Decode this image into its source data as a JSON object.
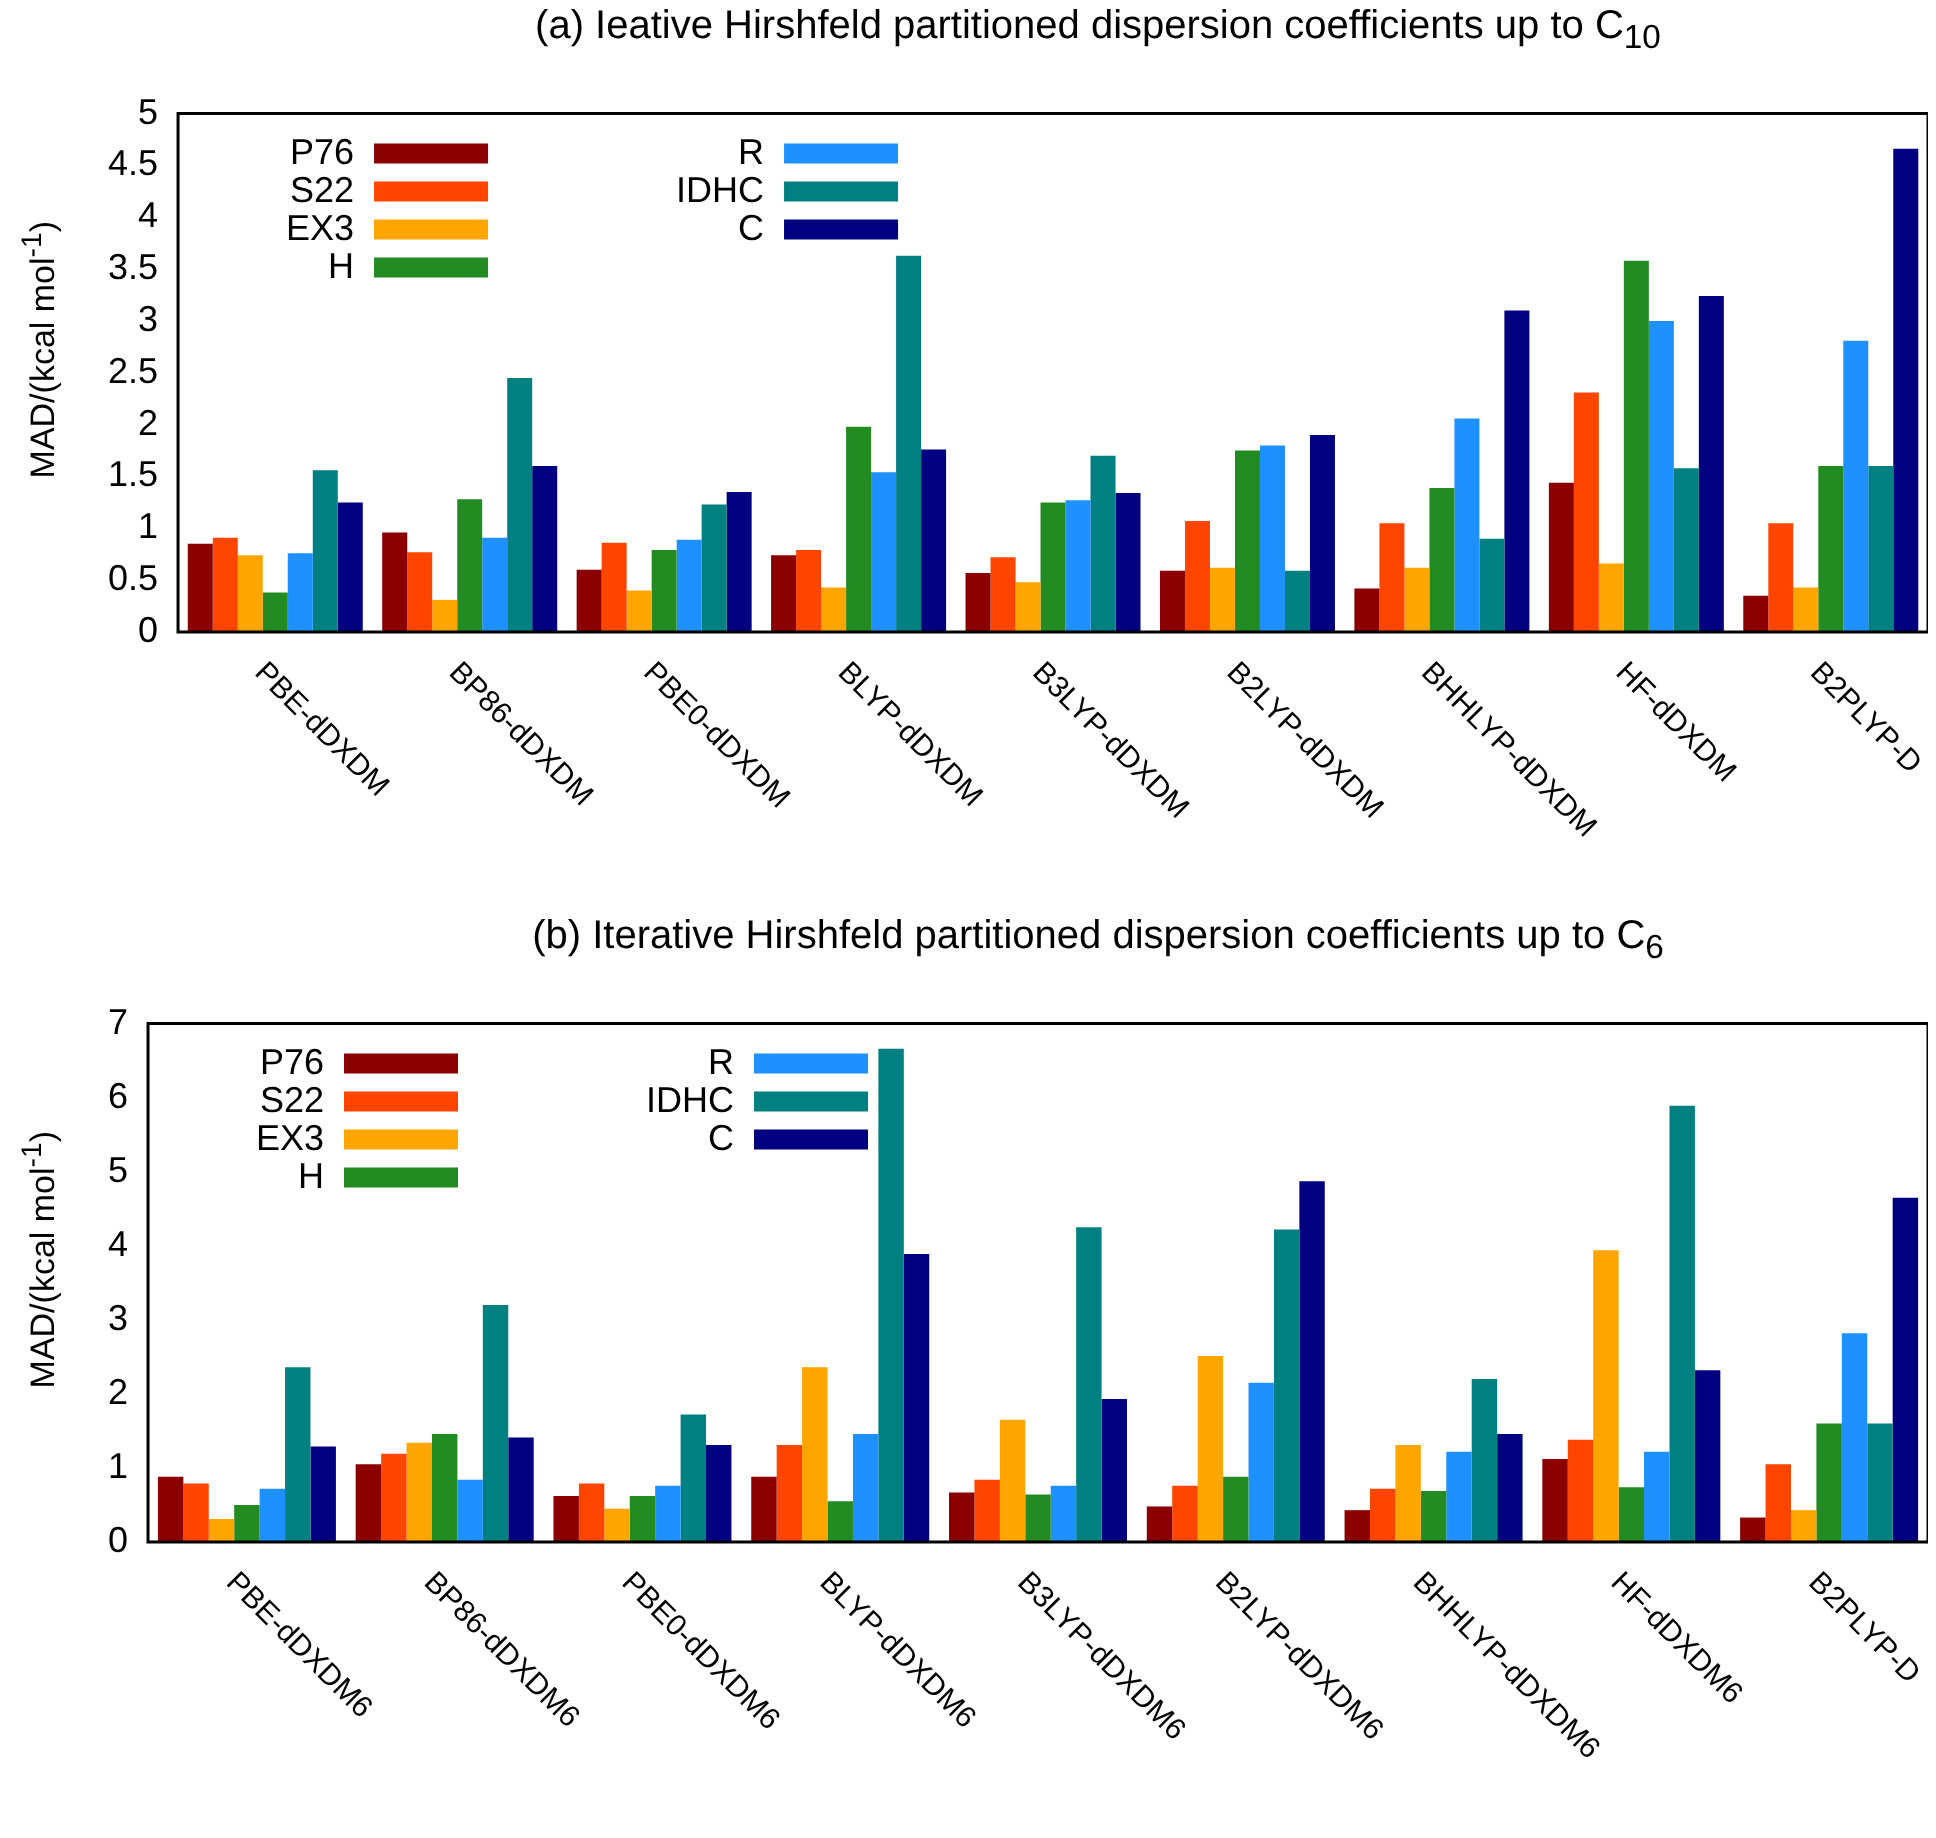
{
  "chart_data": [
    {
      "type": "bar",
      "title": "(a) Ieative Hirshfeld partitioned dispersion coefficients up to C$_{10}$",
      "ylabel": "MAD/(kcal mol$^{-1}$)",
      "categories": [
        "PBE-dDXDM",
        "BP86-dDXDM",
        "PBE0-dDXDM",
        "BLYP-dDXDM",
        "B3LYP-dDXDM",
        "B2LYP-dDXDM",
        "BHHLYP-dDXDM",
        "HF-dDXDM",
        "B2PLYP-D"
      ],
      "series": [
        {
          "name": "P76",
          "color": "#8b0000",
          "values": [
            0.85,
            0.96,
            0.6,
            0.74,
            0.57,
            0.59,
            0.42,
            1.44,
            0.35
          ]
        },
        {
          "name": "S22",
          "color": "#ff4500",
          "values": [
            0.91,
            0.77,
            0.86,
            0.79,
            0.72,
            1.07,
            1.05,
            2.31,
            1.05
          ]
        },
        {
          "name": "EX3",
          "color": "#ffa500",
          "values": [
            0.74,
            0.31,
            0.4,
            0.43,
            0.48,
            0.62,
            0.62,
            0.66,
            0.43
          ]
        },
        {
          "name": "H",
          "color": "#228b22",
          "values": [
            0.38,
            1.28,
            0.79,
            1.98,
            1.25,
            1.75,
            1.39,
            3.58,
            1.6
          ]
        },
        {
          "name": "R",
          "color": "#1e90ff",
          "values": [
            0.76,
            0.91,
            0.89,
            1.54,
            1.27,
            1.8,
            2.06,
            3.0,
            2.81
          ]
        },
        {
          "name": "IDHC",
          "color": "#008080",
          "values": [
            1.56,
            2.45,
            1.23,
            3.63,
            1.7,
            0.59,
            0.9,
            1.58,
            1.6
          ]
        },
        {
          "name": "C",
          "color": "#000080",
          "values": [
            1.25,
            1.6,
            1.35,
            1.76,
            1.34,
            1.9,
            3.1,
            3.24,
            4.66
          ]
        }
      ],
      "ylim": [
        0,
        5
      ],
      "yticks": [
        0,
        0.5,
        1,
        1.5,
        2,
        2.5,
        3,
        3.5,
        4,
        4.5,
        5
      ],
      "grid": false,
      "legend": "top left"
    },
    {
      "type": "bar",
      "title": "(b) Iterative Hirshfeld partitioned dispersion coefficients up to C$_{6}$",
      "ylabel": "MAD/(kcal mol$^{-1}$)",
      "categories": [
        "PBE-dDXDM6",
        "BP86-dDXDM6",
        "PBE0-dDXDM6",
        "BLYP-dDXDM6",
        "B3LYP-dDXDM6",
        "B2LYP-dDXDM6",
        "BHHLYP-dDXDM6",
        "HF-dDXDM6",
        "B2PLYP-D"
      ],
      "series": [
        {
          "name": "P76",
          "color": "#8b0000",
          "values": [
            0.88,
            1.05,
            0.62,
            0.88,
            0.67,
            0.48,
            0.43,
            1.12,
            0.33
          ]
        },
        {
          "name": "S22",
          "color": "#ff4500",
          "values": [
            0.79,
            1.19,
            0.79,
            1.31,
            0.84,
            0.76,
            0.72,
            1.38,
            1.05
          ]
        },
        {
          "name": "EX3",
          "color": "#ffa500",
          "values": [
            0.31,
            1.34,
            0.45,
            2.36,
            1.65,
            2.51,
            1.31,
            3.94,
            0.43
          ]
        },
        {
          "name": "H",
          "color": "#228b22",
          "values": [
            0.5,
            1.46,
            0.62,
            0.55,
            0.64,
            0.88,
            0.69,
            0.74,
            1.6
          ]
        },
        {
          "name": "R",
          "color": "#1e90ff",
          "values": [
            0.72,
            0.84,
            0.76,
            1.46,
            0.76,
            2.15,
            1.22,
            1.22,
            2.82
          ]
        },
        {
          "name": "IDHC",
          "color": "#008080",
          "values": [
            2.36,
            3.2,
            1.72,
            6.66,
            4.25,
            4.22,
            2.2,
            5.89,
            1.6
          ]
        },
        {
          "name": "C",
          "color": "#000080",
          "values": [
            1.29,
            1.41,
            1.31,
            3.89,
            1.93,
            4.87,
            1.46,
            2.32,
            4.65
          ]
        }
      ],
      "ylim": [
        0,
        7
      ],
      "yticks": [
        0,
        1,
        2,
        3,
        4,
        5,
        6,
        7
      ],
      "grid": false,
      "legend": "top left"
    }
  ]
}
